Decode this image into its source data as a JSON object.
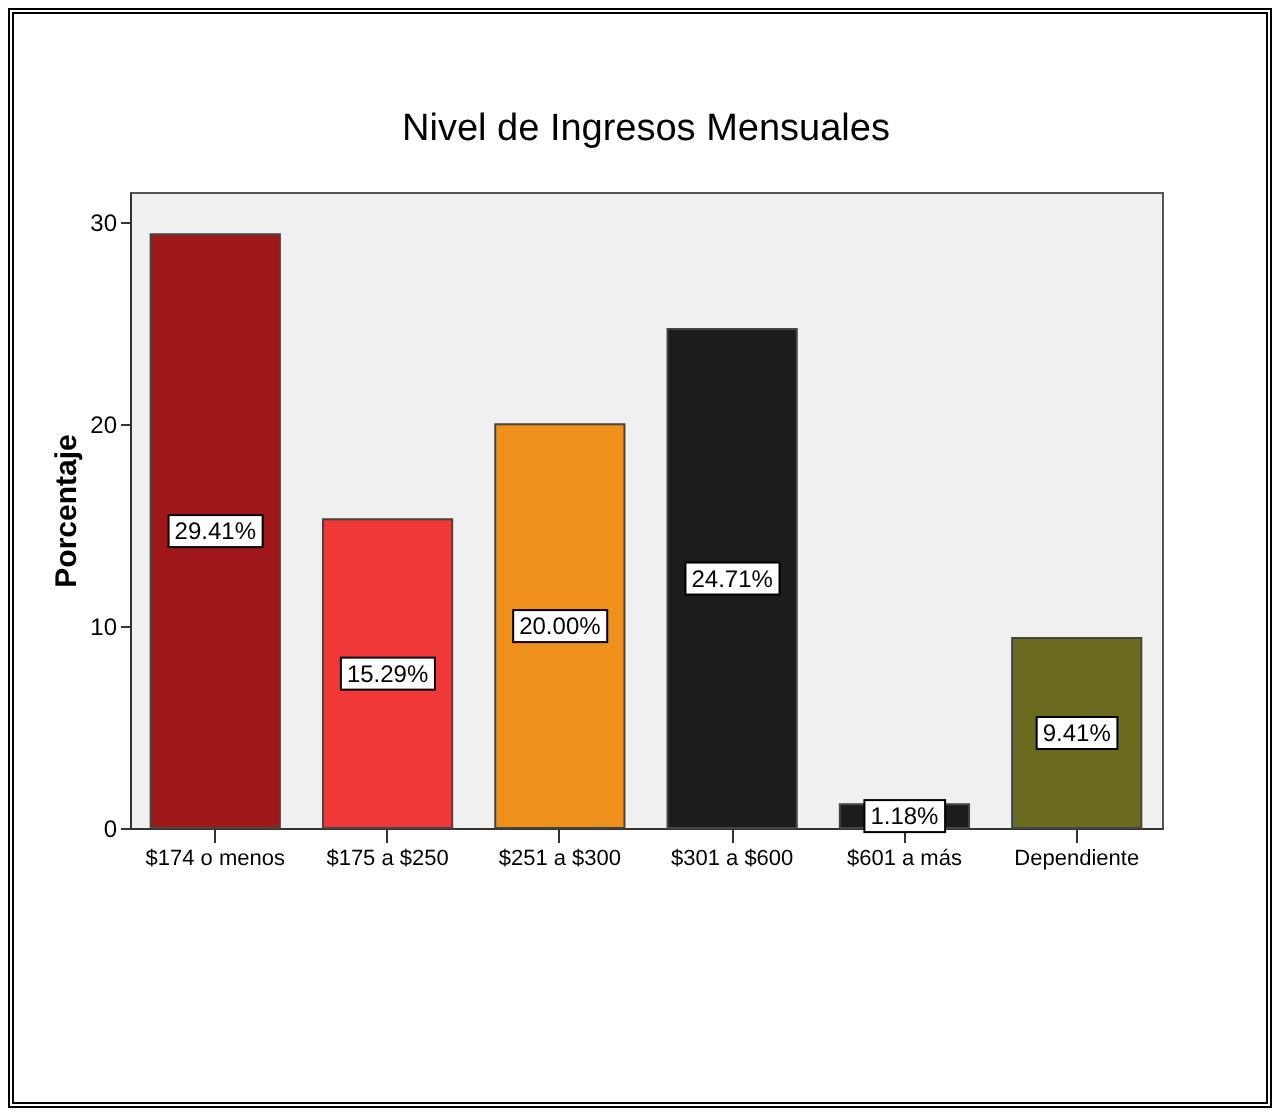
{
  "chart_data": {
    "type": "bar",
    "title": "Nivel de Ingresos Mensuales",
    "ylabel": "Porcentaje",
    "categories": [
      "$174 o menos",
      "$175 a $250",
      "$251 a $300",
      "$301 a $600",
      "$601 a más",
      "Dependiente"
    ],
    "values": [
      29.41,
      15.29,
      20.0,
      24.71,
      1.18,
      9.41
    ],
    "value_labels": [
      "29.41%",
      "15.29%",
      "20.00%",
      "24.71%",
      "1.18%",
      "9.41%"
    ],
    "colors": [
      "#a01818",
      "#f03838",
      "#f0901c",
      "#1c1c1c",
      "#1c1c1c",
      "#6b6b20"
    ],
    "ylim": [
      0,
      31.5
    ],
    "yticks": [
      0,
      10,
      20,
      30
    ],
    "grid": false,
    "legend": false
  }
}
